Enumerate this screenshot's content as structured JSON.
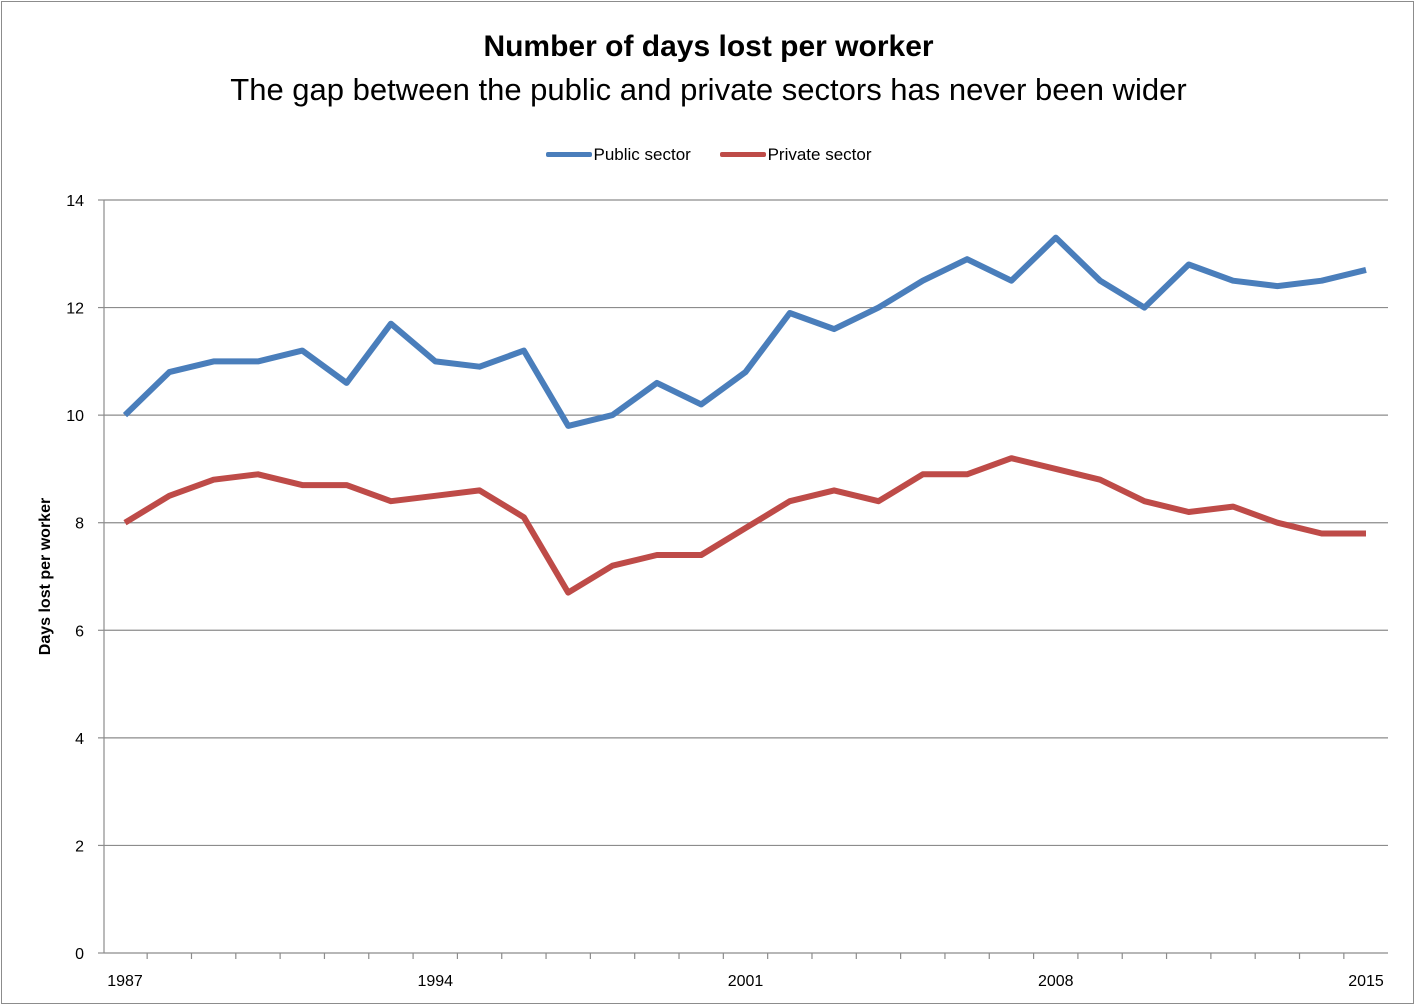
{
  "chart_data": {
    "type": "line",
    "title": "Number of days lost per worker",
    "subtitle": "The gap between the public and private sectors has never been wider",
    "xlabel": "",
    "ylabel": "Days lost per worker",
    "ylim": [
      0,
      14
    ],
    "yticks": [
      0,
      2,
      4,
      6,
      8,
      10,
      12,
      14
    ],
    "xlim": [
      1987,
      2015
    ],
    "xtick_labels": [
      "1987",
      "1994",
      "2001",
      "2008",
      "2015"
    ],
    "grid": true,
    "legend_position": "top-center",
    "x": [
      1987,
      1988,
      1989,
      1990,
      1991,
      1992,
      1993,
      1994,
      1995,
      1996,
      1997,
      1998,
      1999,
      2000,
      2001,
      2002,
      2003,
      2004,
      2005,
      2006,
      2007,
      2008,
      2009,
      2010,
      2011,
      2012,
      2013,
      2014,
      2015
    ],
    "series": [
      {
        "name": "Public sector",
        "color": "#4a7ebb",
        "values": [
          10.0,
          10.8,
          11.0,
          11.0,
          11.2,
          10.6,
          11.7,
          11.0,
          10.9,
          11.2,
          9.8,
          10.0,
          10.6,
          10.2,
          10.8,
          11.9,
          11.6,
          12.0,
          12.5,
          12.9,
          12.5,
          13.3,
          12.5,
          12.0,
          12.8,
          12.5,
          12.4,
          12.5,
          12.7
        ]
      },
      {
        "name": "Private sector",
        "color": "#be4b48",
        "values": [
          8.0,
          8.5,
          8.8,
          8.9,
          8.7,
          8.7,
          8.4,
          8.5,
          8.6,
          8.1,
          6.7,
          7.2,
          7.4,
          7.4,
          7.9,
          8.4,
          8.6,
          8.4,
          8.9,
          8.9,
          9.2,
          9.0,
          8.8,
          8.4,
          8.2,
          8.3,
          8.0,
          7.8,
          7.8
        ]
      }
    ]
  }
}
